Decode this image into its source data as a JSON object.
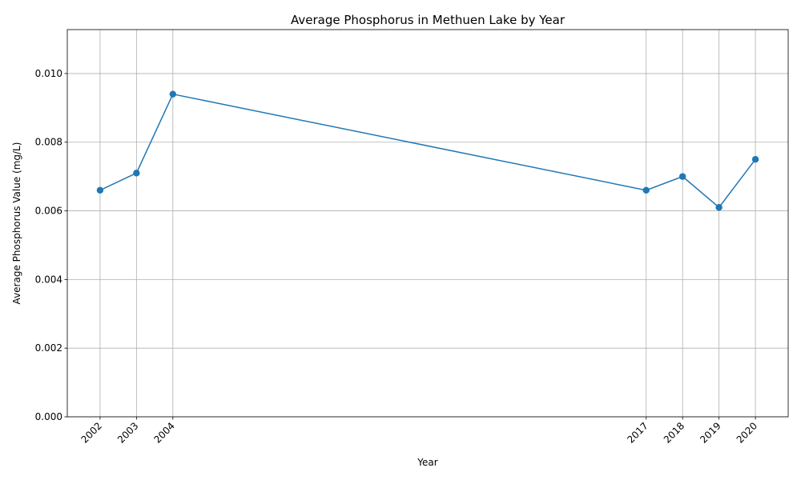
{
  "chart_data": {
    "type": "line",
    "title": "Average Phosphorus in Methuen Lake by Year",
    "xlabel": "Year",
    "ylabel": "Average Phosphorus Value (mg/L)",
    "x": [
      2002,
      2003,
      2004,
      2017,
      2018,
      2019,
      2020
    ],
    "x_tick_labels": [
      "2002",
      "2003",
      "2004",
      "2017",
      "2018",
      "2019",
      "2020"
    ],
    "series": [
      {
        "values": [
          0.0066,
          0.0071,
          0.0094,
          0.0066,
          0.007,
          0.0061,
          0.0075
        ],
        "color": "#1f77b4",
        "marker": "circle"
      }
    ],
    "xlim": [
      2001.1,
      2020.9
    ],
    "ylim": [
      0,
      0.01128
    ],
    "y_ticks": [
      0.0,
      0.002,
      0.004,
      0.006,
      0.008,
      0.01
    ],
    "y_tick_labels": [
      "0.000",
      "0.002",
      "0.004",
      "0.006",
      "0.008",
      "0.010"
    ],
    "grid": true
  }
}
